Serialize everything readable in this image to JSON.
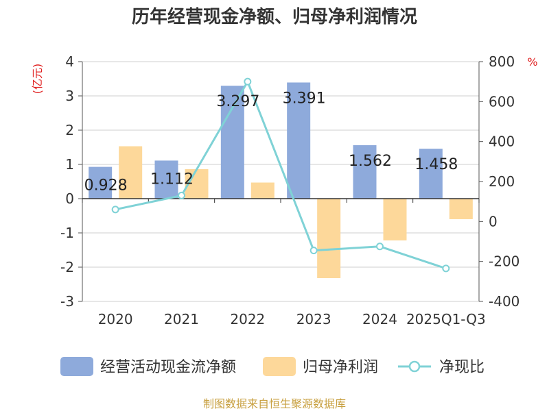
{
  "title": "历年经营现金净额、归母净利润情况",
  "source": "制图数据来自恒生聚源数据库",
  "chart_data": {
    "type": "bar",
    "categories": [
      "2020",
      "2021",
      "2022",
      "2023",
      "2024",
      "2025Q1-Q3"
    ],
    "left_unit": "(亿元)",
    "right_unit": "%",
    "left_ylim": [
      -3,
      4
    ],
    "left_ticks": [
      4,
      3,
      2,
      1,
      0,
      -1,
      -2,
      -3
    ],
    "right_ylim": [
      -400,
      800
    ],
    "right_ticks": [
      800,
      600,
      400,
      200,
      0,
      -200,
      -400
    ],
    "grid": true,
    "legend_position": "bottom",
    "series": [
      {
        "name": "经营活动现金流净额",
        "kind": "bar",
        "axis": "left",
        "color": "#8eaadb",
        "values": [
          0.928,
          1.112,
          3.297,
          3.391,
          1.562,
          1.458
        ],
        "labels": [
          "0.928",
          "1.112",
          "3.297",
          "3.391",
          "1.562",
          "1.458"
        ]
      },
      {
        "name": "归母净利润",
        "kind": "bar",
        "axis": "left",
        "color": "#fdd89a",
        "values": [
          1.53,
          0.86,
          0.47,
          -2.32,
          -1.22,
          -0.6
        ]
      },
      {
        "name": "净现比",
        "kind": "line",
        "axis": "right",
        "color": "#7fd2d6",
        "values": [
          60,
          130,
          700,
          -145,
          -125,
          -235
        ]
      }
    ]
  }
}
